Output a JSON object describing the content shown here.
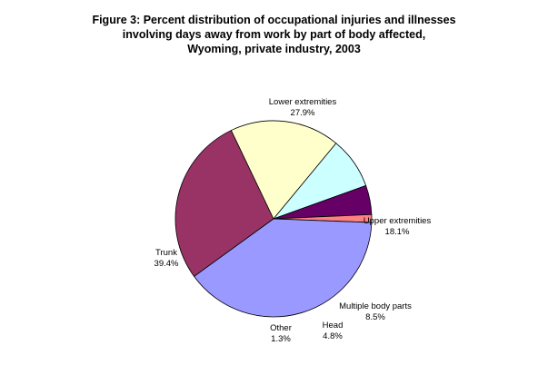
{
  "chart_data": {
    "type": "pie",
    "title_lines": [
      "Figure 3: Percent distribution of occupational injuries and illnesses",
      "involving days away from work by part of body affected,",
      "Wyoming, private industry, 2003"
    ],
    "unit": "%",
    "slices": [
      {
        "label": "Lower extremities",
        "value": 27.9,
        "value_text": "27.9%",
        "color": "#993366"
      },
      {
        "label": "Upper extremities",
        "value": 18.1,
        "value_text": "18.1%",
        "color": "#ffffcc"
      },
      {
        "label": "Multiple body parts",
        "value": 8.5,
        "value_text": "8.5%",
        "color": "#ccffff"
      },
      {
        "label": "Head",
        "value": 4.8,
        "value_text": "4.8%",
        "color": "#660066"
      },
      {
        "label": "Other",
        "value": 1.3,
        "value_text": "1.3%",
        "color": "#ff8080"
      },
      {
        "label": "Trunk",
        "value": 39.4,
        "value_text": "39.4%",
        "color": "#9999ff"
      }
    ],
    "legend": "none"
  }
}
